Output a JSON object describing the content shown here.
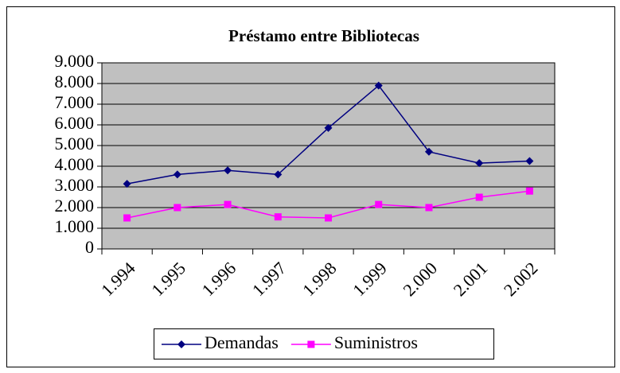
{
  "chart_data": {
    "type": "line",
    "title": "Préstamo entre Bibliotecas",
    "categories": [
      "1.994",
      "1.995",
      "1.996",
      "1.997",
      "1.998",
      "1.999",
      "2.000",
      "2.001",
      "2.002"
    ],
    "series": [
      {
        "name": "Demandas",
        "color": "#000080",
        "marker": "diamond",
        "values": [
          3150,
          3600,
          3800,
          3600,
          5850,
          7900,
          4700,
          4150,
          4250
        ]
      },
      {
        "name": "Suministros",
        "color": "#ff00ff",
        "marker": "square",
        "values": [
          1500,
          2000,
          2150,
          1550,
          1500,
          2150,
          2000,
          2500,
          2800
        ]
      }
    ],
    "ylim": [
      0,
      9000
    ],
    "yticks": [
      0,
      {
        "value": 1000,
        "label": "1.000"
      },
      {
        "value": 2000,
        "label": "2.000"
      },
      {
        "value": 3000,
        "label": "3.000"
      },
      {
        "value": 4000,
        "label": "4.000"
      },
      {
        "value": 5000,
        "label": "5.000"
      },
      {
        "value": 6000,
        "label": "6.000"
      },
      {
        "value": 7000,
        "label": "7.000"
      },
      {
        "value": 8000,
        "label": "8.000"
      },
      {
        "value": 9000,
        "label": "9.000"
      }
    ],
    "grid": true,
    "plot_background": "#c0c0c0",
    "legend": "bottom"
  }
}
